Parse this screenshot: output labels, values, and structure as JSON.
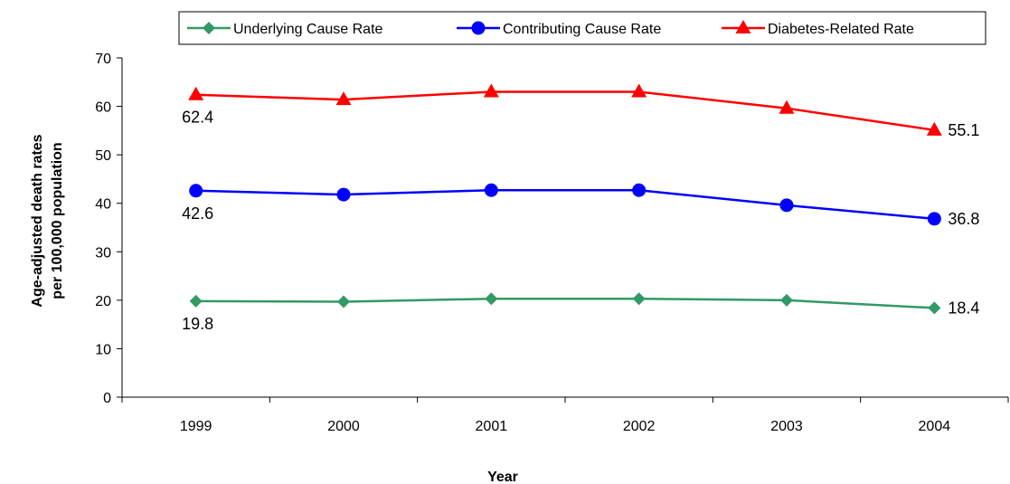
{
  "chart_data": {
    "type": "line",
    "x": [
      "1999",
      "2000",
      "2001",
      "2002",
      "2003",
      "2004"
    ],
    "xlabel": "Year",
    "ylabel_lines": [
      "Age-adjusted death rates",
      "per 100,000 population"
    ],
    "ylim": [
      0,
      70
    ],
    "yticks": [
      0,
      10,
      20,
      30,
      40,
      50,
      60,
      70
    ],
    "grid": false,
    "legend_position": "top",
    "series": [
      {
        "name": "Underlying Cause Rate",
        "color": "#339966",
        "marker": "diamond",
        "values": [
          19.8,
          19.7,
          20.3,
          20.3,
          20.0,
          18.4
        ],
        "labels": [
          {
            "index": 0,
            "text": "19.8",
            "pos": "below"
          },
          {
            "index": 5,
            "text": "18.4",
            "pos": "right"
          }
        ]
      },
      {
        "name": "Contributing Cause Rate",
        "color": "#0000FF",
        "marker": "circle",
        "values": [
          42.6,
          41.8,
          42.7,
          42.7,
          39.6,
          36.8
        ],
        "labels": [
          {
            "index": 0,
            "text": "42.6",
            "pos": "below"
          },
          {
            "index": 5,
            "text": "36.8",
            "pos": "right"
          }
        ]
      },
      {
        "name": "Diabetes-Related Rate",
        "color": "#FF0000",
        "marker": "triangle",
        "values": [
          62.4,
          61.4,
          63.0,
          63.0,
          59.6,
          55.1
        ],
        "labels": [
          {
            "index": 0,
            "text": "62.4",
            "pos": "below"
          },
          {
            "index": 5,
            "text": "55.1",
            "pos": "right"
          }
        ]
      }
    ]
  }
}
